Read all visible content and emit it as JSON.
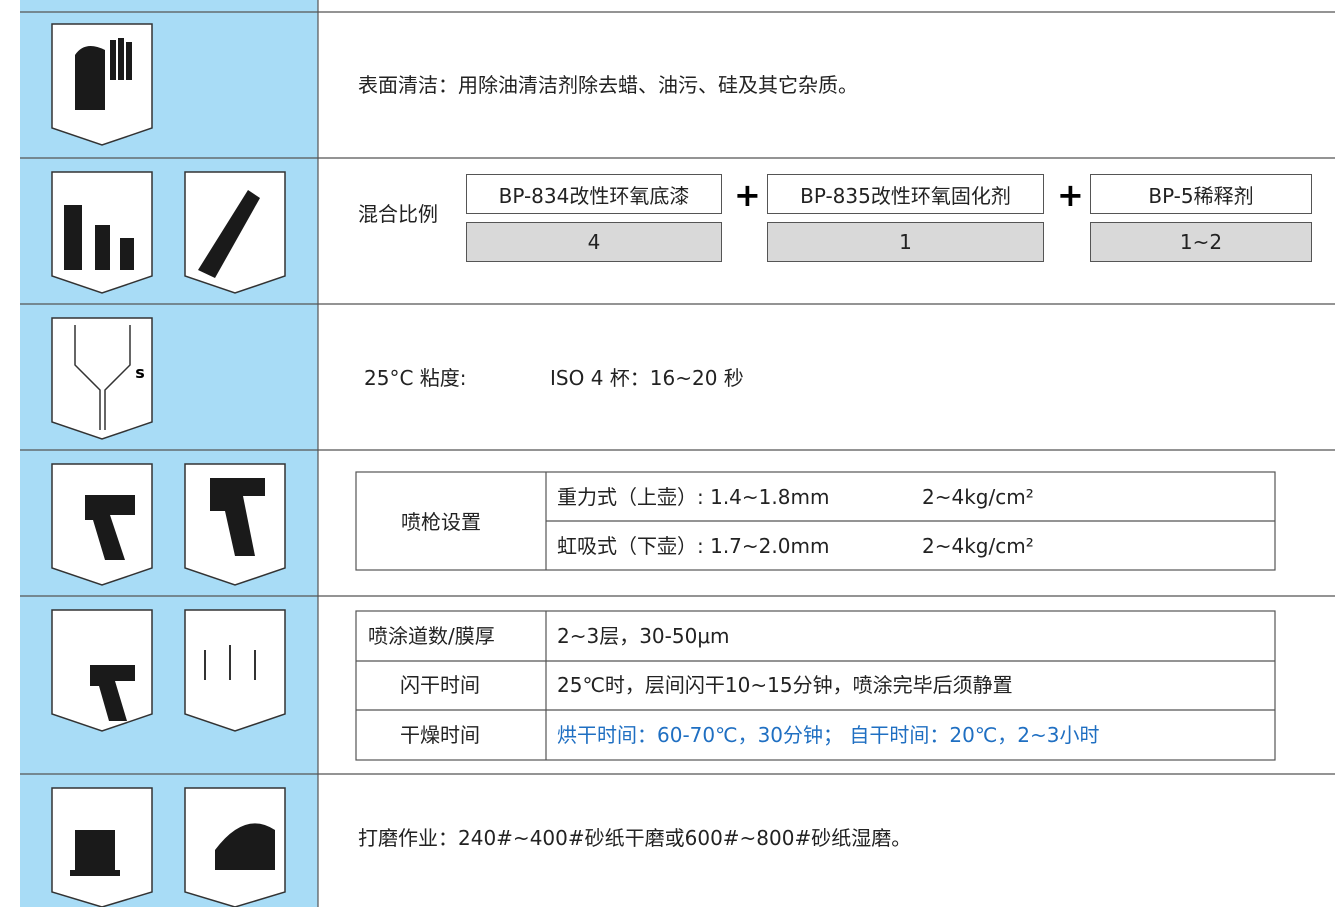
{
  "surface_cleaning": {
    "text": "表面清洁：用除油清洁剂除去蜡、油污、硅及其它杂质。"
  },
  "mixing": {
    "label": "混合比例",
    "components": [
      {
        "name": "BP-834改性环氧底漆",
        "ratio": "4"
      },
      {
        "name": "BP-835改性环氧固化剂",
        "ratio": "1"
      },
      {
        "name": "BP-5稀释剂",
        "ratio": "1~2"
      }
    ],
    "operators": [
      "+",
      "+"
    ]
  },
  "viscosity": {
    "label": "25°C 粘度:",
    "value": "ISO 4 杯：16~20 秒"
  },
  "spray_gun": {
    "label": "喷枪设置",
    "settings": [
      [
        "重力式（上壶）: 1.4~1.8mm",
        "2~4kg/cm²"
      ],
      [
        "虹吸式（下壶）: 1.7~2.0mm",
        "2~4kg/cm²"
      ]
    ]
  },
  "application": {
    "rows": [
      [
        "喷涂道数/膜厚",
        "2~3层，30-50μm"
      ],
      [
        "闪干时间",
        "25℃时，层间闪干10~15分钟，喷涂完毕后须静置"
      ],
      [
        "干燥时间",
        "烘干时间：60-70℃，30分钟； 自干时间：20℃，2~3小时"
      ]
    ]
  },
  "sanding": {
    "text": "打磨作业：240#~400#砂纸干磨或600#~800#砂纸湿磨。"
  }
}
